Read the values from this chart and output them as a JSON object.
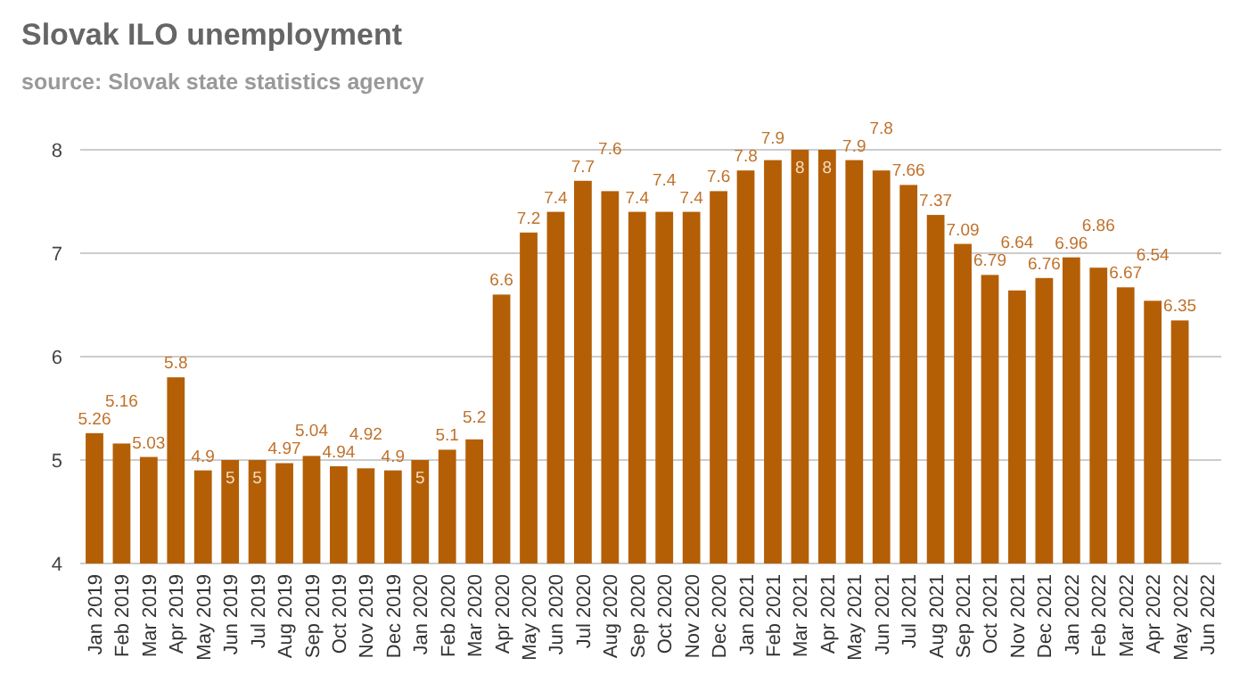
{
  "chart_data": {
    "type": "bar",
    "title": "Slovak ILO unemployment",
    "subtitle": "source: Slovak state statistics agency",
    "categories": [
      "Jan 2019",
      "Feb 2019",
      "Mar 2019",
      "Apr 2019",
      "May 2019",
      "Jun 2019",
      "Jul 2019",
      "Aug 2019",
      "Sep 2019",
      "Oct 2019",
      "Nov 2019",
      "Dec 2019",
      "Jan 2020",
      "Feb 2020",
      "Mar 2020",
      "Apr 2020",
      "May 2020",
      "Jun 2020",
      "Jul 2020",
      "Aug 2020",
      "Sep 2020",
      "Oct 2020",
      "Nov 2020",
      "Dec 2020",
      "Jan 2021",
      "Feb 2021",
      "Mar 2021",
      "Apr 2021",
      "May 2021",
      "Jun 2021",
      "Jul 2021",
      "Aug 2021",
      "Sep 2021",
      "Oct 2021",
      "Nov 2021",
      "Dec 2021",
      "Jan 2022",
      "Feb 2022",
      "Mar 2022",
      "Apr 2022",
      "May 2022",
      "Jun 2022"
    ],
    "values": [
      5.26,
      5.16,
      5.03,
      5.8,
      4.9,
      5,
      5,
      4.97,
      5.04,
      4.94,
      4.92,
      4.9,
      5,
      5.1,
      5.2,
      6.6,
      7.2,
      7.4,
      7.7,
      7.6,
      7.4,
      7.4,
      7.4,
      7.6,
      7.8,
      7.9,
      8,
      8,
      7.9,
      7.8,
      7.66,
      7.37,
      7.09,
      6.79,
      6.64,
      6.76,
      6.96,
      6.86,
      6.67,
      6.54,
      6.35,
      null
    ],
    "color": "#b45f06",
    "ylim": [
      4,
      8
    ],
    "yticks": [
      4,
      5,
      6,
      7,
      8
    ],
    "grid": "y",
    "data_labels": true
  }
}
